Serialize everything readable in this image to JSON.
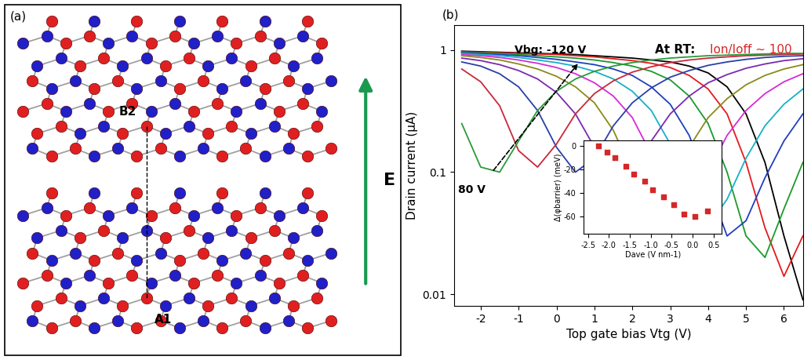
{
  "diagram": {
    "panel_label": "(a)",
    "labels": [
      "B2",
      "A1"
    ],
    "field_label": "E"
  },
  "chart_data": [
    {
      "type": "line",
      "panel_label": "(b)",
      "xlabel": "Top gate bias Vtg (V)",
      "ylabel": "Drain current (μA)",
      "annotations": [
        "Vbg: -120 V",
        "80 V",
        "At RT:",
        "Ion/Ioff ~ 100"
      ],
      "log": "y",
      "x": [
        -2.5,
        -2,
        -1.5,
        -1,
        -0.5,
        0,
        0.5,
        1,
        1.5,
        2,
        2.5,
        3,
        3.5,
        4,
        4.5,
        5,
        5.5,
        6,
        6.5
      ],
      "xlim": [
        -2.7,
        6.5
      ],
      "xticks": [
        -2,
        -1,
        0,
        1,
        2,
        3,
        4,
        5,
        6
      ],
      "ylim": [
        0.008,
        1.6
      ],
      "yticks": [
        0.01,
        0.1,
        1
      ],
      "series": [
        {
          "color": "#000000",
          "values": [
            0.98,
            0.97,
            0.96,
            0.95,
            0.94,
            0.93,
            0.92,
            0.9,
            0.88,
            0.86,
            0.83,
            0.8,
            0.74,
            0.65,
            0.5,
            0.3,
            0.12,
            0.03,
            0.009
          ]
        },
        {
          "color": "#e41a1c",
          "values": [
            0.97,
            0.96,
            0.95,
            0.94,
            0.93,
            0.92,
            0.9,
            0.88,
            0.85,
            0.82,
            0.78,
            0.72,
            0.62,
            0.48,
            0.3,
            0.12,
            0.035,
            0.014,
            0.03
          ]
        },
        {
          "color": "#1a9a2a",
          "values": [
            0.96,
            0.95,
            0.94,
            0.92,
            0.9,
            0.88,
            0.86,
            0.83,
            0.79,
            0.74,
            0.67,
            0.57,
            0.42,
            0.25,
            0.1,
            0.03,
            0.02,
            0.05,
            0.12
          ]
        },
        {
          "color": "#1f3fbf",
          "values": [
            0.95,
            0.94,
            0.92,
            0.9,
            0.87,
            0.84,
            0.8,
            0.76,
            0.7,
            0.62,
            0.5,
            0.36,
            0.2,
            0.08,
            0.03,
            0.04,
            0.09,
            0.18,
            0.3
          ]
        },
        {
          "color": "#17b0c8",
          "values": [
            0.94,
            0.92,
            0.9,
            0.87,
            0.83,
            0.79,
            0.74,
            0.67,
            0.58,
            0.46,
            0.32,
            0.17,
            0.07,
            0.036,
            0.06,
            0.13,
            0.24,
            0.36,
            0.48
          ]
        },
        {
          "color": "#d62ad6",
          "values": [
            0.92,
            0.9,
            0.87,
            0.83,
            0.78,
            0.72,
            0.64,
            0.54,
            0.42,
            0.28,
            0.14,
            0.06,
            0.05,
            0.1,
            0.2,
            0.32,
            0.44,
            0.55,
            0.64
          ]
        },
        {
          "color": "#8a8a1a",
          "values": [
            0.9,
            0.87,
            0.83,
            0.77,
            0.7,
            0.61,
            0.5,
            0.37,
            0.22,
            0.1,
            0.065,
            0.08,
            0.16,
            0.28,
            0.4,
            0.52,
            0.62,
            0.7,
            0.76
          ]
        },
        {
          "color": "#7a2ab0",
          "values": [
            0.86,
            0.82,
            0.76,
            0.68,
            0.58,
            0.45,
            0.3,
            0.16,
            0.09,
            0.1,
            0.18,
            0.3,
            0.42,
            0.54,
            0.63,
            0.71,
            0.77,
            0.82,
            0.85
          ]
        },
        {
          "color": "#2a3fa8",
          "values": [
            0.8,
            0.74,
            0.64,
            0.5,
            0.32,
            0.16,
            0.1,
            0.13,
            0.24,
            0.37,
            0.49,
            0.6,
            0.68,
            0.75,
            0.8,
            0.84,
            0.87,
            0.89,
            0.9
          ]
        },
        {
          "color": "#c8283a",
          "values": [
            0.7,
            0.55,
            0.35,
            0.15,
            0.11,
            0.17,
            0.3,
            0.44,
            0.56,
            0.66,
            0.73,
            0.79,
            0.83,
            0.86,
            0.88,
            0.9,
            0.91,
            0.92,
            0.93
          ]
        },
        {
          "color": "#2a9a3a",
          "values": [
            0.25,
            0.11,
            0.1,
            0.18,
            0.32,
            0.46,
            0.58,
            0.67,
            0.74,
            0.79,
            0.83,
            0.86,
            0.88,
            0.9,
            0.91,
            0.92,
            0.93,
            0.94,
            0.94
          ]
        }
      ]
    },
    {
      "type": "scatter",
      "xlabel": "Dave (V nm-1)",
      "ylabel": "Δ(φbarrier) (meV)",
      "x": [
        -2.25,
        -2.05,
        -1.85,
        -1.6,
        -1.4,
        -1.15,
        -0.95,
        -0.7,
        -0.45,
        -0.2,
        0.05,
        0.35
      ],
      "values": [
        0,
        -5,
        -10,
        -17,
        -24,
        -30,
        -37,
        -43,
        -50,
        -58,
        -60,
        -55
      ],
      "color": "#d62728",
      "marker": "s",
      "xlim": [
        -2.6,
        0.7
      ],
      "xticks": [
        -2.5,
        -2.0,
        -1.5,
        -1.0,
        -0.5,
        0.0,
        0.5
      ],
      "ylim": [
        -75,
        5
      ],
      "yticks": [
        0,
        -20,
        -40,
        -60
      ]
    }
  ]
}
